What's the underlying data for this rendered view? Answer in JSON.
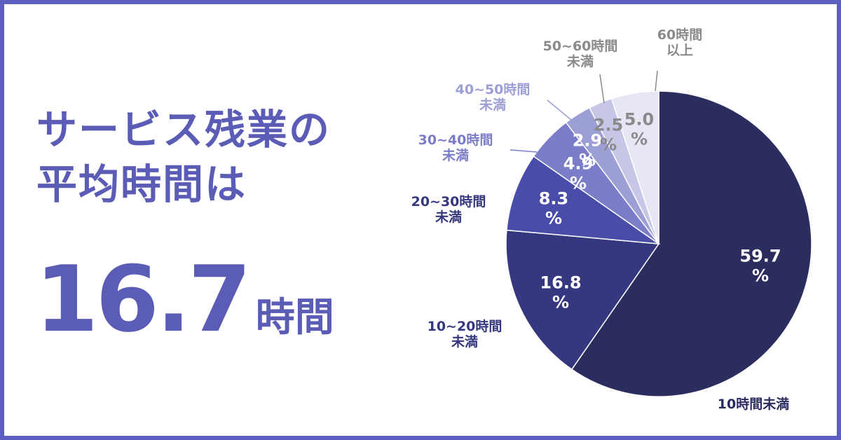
{
  "chart_data": {
    "type": "pie",
    "title": "サービス残業の\n平均時間は",
    "average": 16.7,
    "average_unit": "時間",
    "categories": [
      "10時間未満",
      "10~20時間\n未満",
      "20~30時間\n未満",
      "30~40時間\n未満",
      "40~50時間\n未満",
      "50~60時間\n未満",
      "60時間\n以上"
    ],
    "values": [
      59.7,
      16.8,
      8.3,
      4.9,
      2.9,
      2.5,
      5.0
    ],
    "value_labels": [
      "59.7 %",
      "16.8 %",
      "8.3 %",
      "4.9 %",
      "2.9 %",
      "2.5 %",
      "5.0 %"
    ],
    "colors": [
      "#2b2d5f",
      "#35387f",
      "#4a4ca9",
      "#7b7dc9",
      "#9c9ed6",
      "#c6c7e7",
      "#e6e6f4"
    ],
    "value_label_colors": [
      "#ffffff",
      "#ffffff",
      "#ffffff",
      "#ffffff",
      "#ffffff",
      "#8a8a8a",
      "#8a8a8a"
    ],
    "category_label_colors": [
      "#2b2d5f",
      "#35387f",
      "#35387f",
      "#7b7dc9",
      "#9c9ed6",
      "#8a8a8a",
      "#8a8a8a"
    ]
  }
}
